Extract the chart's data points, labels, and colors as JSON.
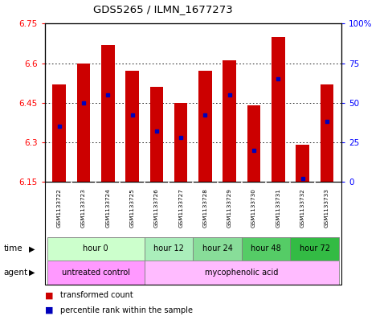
{
  "title": "GDS5265 / ILMN_1677273",
  "samples": [
    "GSM1133722",
    "GSM1133723",
    "GSM1133724",
    "GSM1133725",
    "GSM1133726",
    "GSM1133727",
    "GSM1133728",
    "GSM1133729",
    "GSM1133730",
    "GSM1133731",
    "GSM1133732",
    "GSM1133733"
  ],
  "bar_tops": [
    6.52,
    6.6,
    6.67,
    6.57,
    6.51,
    6.45,
    6.57,
    6.61,
    6.44,
    6.7,
    6.29,
    6.52
  ],
  "percentile_ranks": [
    35,
    50,
    55,
    42,
    32,
    28,
    42,
    55,
    20,
    65,
    2,
    38
  ],
  "bar_base": 6.15,
  "ylim_left": [
    6.15,
    6.75
  ],
  "ylim_right": [
    0,
    100
  ],
  "yticks_left": [
    6.15,
    6.3,
    6.45,
    6.6,
    6.75
  ],
  "yticks_right": [
    0,
    25,
    50,
    75,
    100
  ],
  "ytick_labels_left": [
    "6.15",
    "6.3",
    "6.45",
    "6.6",
    "6.75"
  ],
  "ytick_labels_right": [
    "0",
    "25",
    "50",
    "75",
    "100%"
  ],
  "bar_color": "#CC0000",
  "dot_color": "#0000BB",
  "grid_color": "#000000",
  "time_groups": [
    {
      "label": "hour 0",
      "start": 0,
      "end": 3,
      "color": "#CCFFCC"
    },
    {
      "label": "hour 12",
      "start": 4,
      "end": 5,
      "color": "#AAEEBB"
    },
    {
      "label": "hour 24",
      "start": 6,
      "end": 7,
      "color": "#88DD99"
    },
    {
      "label": "hour 48",
      "start": 8,
      "end": 9,
      "color": "#55CC66"
    },
    {
      "label": "hour 72",
      "start": 10,
      "end": 11,
      "color": "#33BB44"
    }
  ],
  "agent_groups": [
    {
      "label": "untreated control",
      "start": 0,
      "end": 3,
      "color": "#FF99FF"
    },
    {
      "label": "mycophenolic acid",
      "start": 4,
      "end": 11,
      "color": "#FFBBFF"
    }
  ],
  "bg_color": "#FFFFFF",
  "plot_bg": "#FFFFFF",
  "sample_bg": "#C8C8C8",
  "bar_width": 0.55
}
